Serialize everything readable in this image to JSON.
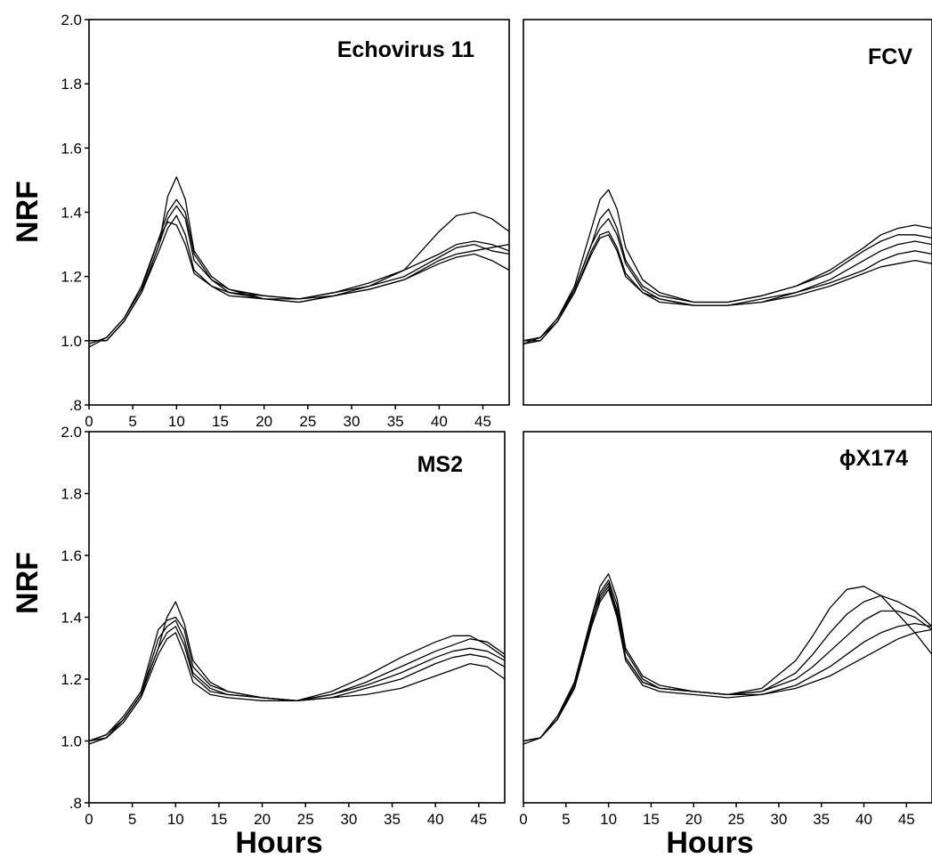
{
  "chart_data": [
    {
      "type": "line",
      "title": "Echovirus 11",
      "ylabel": "NRF",
      "xlabel": "",
      "xlim": [
        0,
        48
      ],
      "ylim": [
        0.8,
        2.0
      ],
      "xticks": [
        "0",
        "5",
        "10",
        "15",
        "20",
        "25",
        "30",
        "35",
        "40",
        "45"
      ],
      "yticks": [
        ".8",
        "1.0",
        "1.2",
        "1.4",
        "1.6",
        "1.8",
        "2.0"
      ],
      "series": [
        {
          "x": [
            0,
            2,
            4,
            6,
            8,
            9,
            10,
            11,
            12,
            14,
            16,
            20,
            24,
            28,
            32,
            36,
            40,
            42,
            44,
            46,
            48
          ],
          "y": [
            1.0,
            1.0,
            1.06,
            1.15,
            1.3,
            1.45,
            1.51,
            1.44,
            1.28,
            1.2,
            1.16,
            1.13,
            1.12,
            1.14,
            1.17,
            1.22,
            1.34,
            1.39,
            1.4,
            1.38,
            1.34
          ]
        },
        {
          "x": [
            0,
            2,
            4,
            6,
            8,
            9,
            10,
            11,
            12,
            14,
            16,
            20,
            24,
            28,
            32,
            36,
            40,
            42,
            44,
            46,
            48
          ],
          "y": [
            0.99,
            1.01,
            1.07,
            1.16,
            1.32,
            1.4,
            1.44,
            1.4,
            1.27,
            1.19,
            1.15,
            1.14,
            1.13,
            1.15,
            1.17,
            1.2,
            1.26,
            1.29,
            1.3,
            1.28,
            1.27
          ]
        },
        {
          "x": [
            0,
            2,
            4,
            6,
            8,
            9,
            10,
            11,
            12,
            14,
            16,
            20,
            24,
            28,
            32,
            36,
            40,
            42,
            44,
            46,
            48
          ],
          "y": [
            1.0,
            1.0,
            1.06,
            1.15,
            1.3,
            1.38,
            1.42,
            1.38,
            1.25,
            1.19,
            1.16,
            1.14,
            1.13,
            1.15,
            1.18,
            1.22,
            1.27,
            1.3,
            1.31,
            1.3,
            1.28
          ]
        },
        {
          "x": [
            0,
            2,
            4,
            6,
            8,
            9,
            10,
            11,
            12,
            14,
            16,
            20,
            24,
            28,
            32,
            36,
            40,
            42,
            44,
            46,
            48
          ],
          "y": [
            1.0,
            1.0,
            1.06,
            1.15,
            1.28,
            1.35,
            1.39,
            1.33,
            1.22,
            1.17,
            1.14,
            1.13,
            1.12,
            1.14,
            1.16,
            1.19,
            1.24,
            1.26,
            1.27,
            1.25,
            1.22
          ]
        },
        {
          "x": [
            0,
            2,
            4,
            6,
            8,
            9,
            10,
            11,
            12,
            14,
            16,
            20,
            24,
            28,
            32,
            36,
            40,
            42,
            44,
            46,
            48
          ],
          "y": [
            0.98,
            1.01,
            1.07,
            1.17,
            1.32,
            1.37,
            1.36,
            1.3,
            1.21,
            1.17,
            1.15,
            1.13,
            1.13,
            1.14,
            1.16,
            1.19,
            1.25,
            1.27,
            1.28,
            1.29,
            1.3
          ]
        }
      ]
    },
    {
      "type": "line",
      "title": "FCV",
      "ylabel": "",
      "xlabel": "",
      "xlim": [
        0,
        48
      ],
      "ylim": [
        0.8,
        2.0
      ],
      "xticks": [],
      "yticks": [],
      "series": [
        {
          "x": [
            0,
            2,
            4,
            6,
            8,
            9,
            10,
            11,
            12,
            14,
            16,
            20,
            24,
            28,
            32,
            36,
            40,
            42,
            44,
            46,
            48
          ],
          "y": [
            1.0,
            1.01,
            1.07,
            1.17,
            1.35,
            1.44,
            1.47,
            1.41,
            1.29,
            1.19,
            1.15,
            1.12,
            1.12,
            1.14,
            1.17,
            1.22,
            1.29,
            1.33,
            1.35,
            1.36,
            1.35
          ]
        },
        {
          "x": [
            0,
            2,
            4,
            6,
            8,
            9,
            10,
            11,
            12,
            14,
            16,
            20,
            24,
            28,
            32,
            36,
            40,
            42,
            44,
            46,
            48
          ],
          "y": [
            0.99,
            1.01,
            1.07,
            1.16,
            1.3,
            1.38,
            1.41,
            1.35,
            1.25,
            1.17,
            1.14,
            1.12,
            1.12,
            1.14,
            1.17,
            1.21,
            1.28,
            1.31,
            1.33,
            1.33,
            1.32
          ]
        },
        {
          "x": [
            0,
            2,
            4,
            6,
            8,
            9,
            10,
            11,
            12,
            14,
            16,
            20,
            24,
            28,
            32,
            36,
            40,
            42,
            44,
            46,
            48
          ],
          "y": [
            1.0,
            1.01,
            1.06,
            1.16,
            1.3,
            1.35,
            1.38,
            1.33,
            1.24,
            1.16,
            1.13,
            1.11,
            1.11,
            1.13,
            1.15,
            1.19,
            1.25,
            1.28,
            1.3,
            1.31,
            1.3
          ]
        },
        {
          "x": [
            0,
            2,
            4,
            6,
            8,
            9,
            10,
            11,
            12,
            14,
            16,
            20,
            24,
            28,
            32,
            36,
            40,
            42,
            44,
            46,
            48
          ],
          "y": [
            1.0,
            1.0,
            1.06,
            1.15,
            1.28,
            1.33,
            1.34,
            1.29,
            1.21,
            1.15,
            1.13,
            1.11,
            1.11,
            1.12,
            1.15,
            1.18,
            1.22,
            1.25,
            1.27,
            1.28,
            1.27
          ]
        },
        {
          "x": [
            0,
            2,
            4,
            6,
            8,
            9,
            10,
            11,
            12,
            14,
            16,
            20,
            24,
            28,
            32,
            36,
            40,
            42,
            44,
            46,
            48
          ],
          "y": [
            0.99,
            1.0,
            1.06,
            1.15,
            1.27,
            1.32,
            1.33,
            1.28,
            1.2,
            1.15,
            1.12,
            1.11,
            1.11,
            1.12,
            1.14,
            1.17,
            1.21,
            1.23,
            1.24,
            1.25,
            1.24
          ]
        }
      ]
    },
    {
      "type": "line",
      "title": "MS2",
      "ylabel": "NRF",
      "xlabel": "Hours",
      "xlim": [
        0,
        48
      ],
      "ylim": [
        0.8,
        2.0
      ],
      "xticks": [
        "0",
        "5",
        "10",
        "15",
        "20",
        "25",
        "30",
        "35",
        "40",
        "45"
      ],
      "yticks": [
        ".8",
        "1.0",
        "1.2",
        "1.4",
        "1.6",
        "1.8",
        "2.0"
      ],
      "series": [
        {
          "x": [
            0,
            2,
            4,
            6,
            8,
            9,
            10,
            11,
            12,
            14,
            16,
            20,
            24,
            28,
            32,
            36,
            40,
            42,
            44,
            46,
            48
          ],
          "y": [
            1.0,
            1.02,
            1.07,
            1.15,
            1.3,
            1.4,
            1.45,
            1.38,
            1.26,
            1.19,
            1.16,
            1.14,
            1.13,
            1.16,
            1.21,
            1.27,
            1.32,
            1.34,
            1.34,
            1.31,
            1.27
          ]
        },
        {
          "x": [
            0,
            2,
            4,
            6,
            8,
            9,
            10,
            11,
            12,
            14,
            16,
            20,
            24,
            28,
            32,
            36,
            40,
            42,
            44,
            46,
            48
          ],
          "y": [
            1.0,
            1.02,
            1.08,
            1.16,
            1.36,
            1.39,
            1.4,
            1.36,
            1.24,
            1.18,
            1.16,
            1.14,
            1.13,
            1.15,
            1.19,
            1.24,
            1.29,
            1.31,
            1.33,
            1.32,
            1.28
          ]
        },
        {
          "x": [
            0,
            2,
            4,
            6,
            8,
            9,
            10,
            11,
            12,
            14,
            16,
            20,
            24,
            28,
            32,
            36,
            40,
            42,
            44,
            46,
            48
          ],
          "y": [
            0.99,
            1.01,
            1.07,
            1.15,
            1.33,
            1.37,
            1.39,
            1.33,
            1.22,
            1.17,
            1.15,
            1.14,
            1.13,
            1.15,
            1.18,
            1.22,
            1.27,
            1.29,
            1.3,
            1.29,
            1.26
          ]
        },
        {
          "x": [
            0,
            2,
            4,
            6,
            8,
            9,
            10,
            11,
            12,
            14,
            16,
            20,
            24,
            28,
            32,
            36,
            40,
            42,
            44,
            46,
            48
          ],
          "y": [
            1.0,
            1.01,
            1.07,
            1.15,
            1.3,
            1.35,
            1.37,
            1.31,
            1.21,
            1.16,
            1.15,
            1.14,
            1.13,
            1.14,
            1.17,
            1.2,
            1.25,
            1.27,
            1.28,
            1.27,
            1.24
          ]
        },
        {
          "x": [
            0,
            2,
            4,
            6,
            8,
            9,
            10,
            11,
            12,
            14,
            16,
            20,
            24,
            28,
            32,
            36,
            40,
            42,
            44,
            46,
            48
          ],
          "y": [
            1.0,
            1.01,
            1.06,
            1.14,
            1.28,
            1.33,
            1.35,
            1.28,
            1.19,
            1.15,
            1.14,
            1.13,
            1.13,
            1.14,
            1.15,
            1.17,
            1.21,
            1.23,
            1.25,
            1.24,
            1.2
          ]
        }
      ]
    },
    {
      "type": "line",
      "title": "ϕX174",
      "ylabel": "",
      "xlabel": "Hours",
      "xlim": [
        0,
        48
      ],
      "ylim": [
        0.8,
        2.0
      ],
      "xticks": [
        "0",
        "5",
        "10",
        "15",
        "20",
        "25",
        "30",
        "35",
        "40",
        "45"
      ],
      "yticks": [],
      "series": [
        {
          "x": [
            0,
            2,
            4,
            6,
            8,
            9,
            10,
            11,
            12,
            14,
            16,
            20,
            24,
            28,
            32,
            34,
            36,
            38,
            40,
            42,
            44,
            46,
            48
          ],
          "y": [
            1.0,
            1.01,
            1.08,
            1.19,
            1.4,
            1.5,
            1.54,
            1.46,
            1.3,
            1.21,
            1.18,
            1.16,
            1.15,
            1.17,
            1.26,
            1.34,
            1.43,
            1.49,
            1.5,
            1.47,
            1.41,
            1.35,
            1.28
          ]
        },
        {
          "x": [
            0,
            2,
            4,
            6,
            8,
            9,
            10,
            11,
            12,
            14,
            16,
            20,
            24,
            28,
            32,
            34,
            36,
            38,
            40,
            42,
            44,
            46,
            48
          ],
          "y": [
            1.0,
            1.01,
            1.08,
            1.19,
            1.4,
            1.48,
            1.52,
            1.44,
            1.29,
            1.2,
            1.17,
            1.16,
            1.15,
            1.16,
            1.22,
            1.28,
            1.35,
            1.41,
            1.45,
            1.47,
            1.45,
            1.42,
            1.37
          ]
        },
        {
          "x": [
            0,
            2,
            4,
            6,
            8,
            9,
            10,
            11,
            12,
            14,
            16,
            20,
            24,
            28,
            32,
            34,
            36,
            38,
            40,
            42,
            44,
            46,
            48
          ],
          "y": [
            0.99,
            1.01,
            1.07,
            1.18,
            1.38,
            1.47,
            1.51,
            1.42,
            1.27,
            1.19,
            1.17,
            1.16,
            1.15,
            1.16,
            1.2,
            1.24,
            1.29,
            1.34,
            1.39,
            1.42,
            1.42,
            1.4,
            1.36
          ]
        },
        {
          "x": [
            0,
            2,
            4,
            6,
            8,
            9,
            10,
            11,
            12,
            14,
            16,
            20,
            24,
            28,
            32,
            34,
            36,
            38,
            40,
            42,
            44,
            46,
            48
          ],
          "y": [
            1.0,
            1.01,
            1.08,
            1.18,
            1.39,
            1.46,
            1.5,
            1.41,
            1.27,
            1.19,
            1.17,
            1.16,
            1.15,
            1.15,
            1.18,
            1.21,
            1.24,
            1.28,
            1.32,
            1.35,
            1.37,
            1.38,
            1.37
          ]
        },
        {
          "x": [
            0,
            2,
            4,
            6,
            8,
            9,
            10,
            11,
            12,
            14,
            16,
            20,
            24,
            28,
            32,
            34,
            36,
            38,
            40,
            42,
            44,
            46,
            48
          ],
          "y": [
            1.0,
            1.01,
            1.07,
            1.17,
            1.37,
            1.45,
            1.49,
            1.4,
            1.26,
            1.18,
            1.16,
            1.15,
            1.14,
            1.15,
            1.17,
            1.19,
            1.21,
            1.24,
            1.27,
            1.3,
            1.33,
            1.35,
            1.36
          ]
        }
      ]
    }
  ]
}
